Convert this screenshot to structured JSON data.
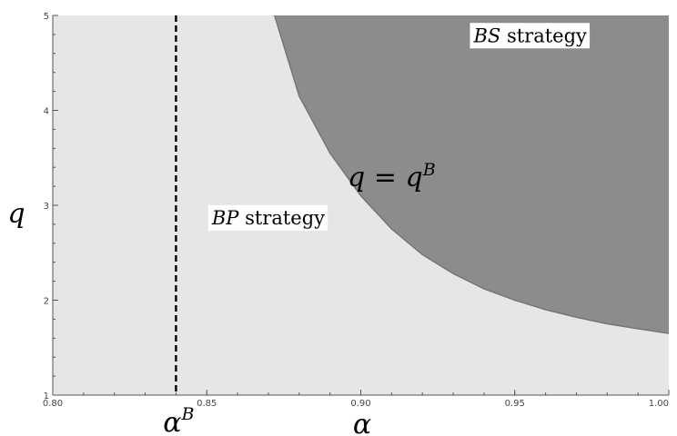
{
  "chart_data": {
    "type": "area",
    "x_range": [
      0.8,
      1.0
    ],
    "y_range": [
      1,
      5
    ],
    "x_ticks": [
      0.8,
      0.85,
      0.9,
      0.95,
      1.0
    ],
    "x_tick_labels": [
      "0.80",
      "0.85",
      "0.90",
      "0.95",
      "1.00"
    ],
    "y_ticks": [
      1,
      2,
      3,
      4,
      5
    ],
    "y_tick_labels": [
      "1",
      "2",
      "3",
      "4",
      "5"
    ],
    "x_minor_step": 0.01,
    "y_minor_step": 0.2,
    "boundary_curve": {
      "x": [
        0.872,
        0.88,
        0.89,
        0.9,
        0.91,
        0.92,
        0.93,
        0.94,
        0.95,
        0.96,
        0.97,
        0.98,
        0.99,
        1.0
      ],
      "y": [
        5.0,
        4.15,
        3.55,
        3.1,
        2.75,
        2.48,
        2.28,
        2.12,
        2.0,
        1.9,
        1.82,
        1.75,
        1.7,
        1.65
      ]
    },
    "vertical_line_x": 0.84,
    "colors": {
      "bp_region": "#e6e6e6",
      "bs_region": "#8c8c8c",
      "boundary": "#737373",
      "dashed_line": "#000000"
    },
    "labels": {
      "bs_region": {
        "math": "BS",
        "text": " strategy",
        "x": 0.955,
        "y": 4.72
      },
      "bp_region": {
        "math": "BP",
        "text": " strategy",
        "x": 0.87,
        "y": 2.8
      },
      "curve": {
        "lhs": "q",
        "eq": " = ",
        "rhs": "q",
        "sup": "B",
        "x": 0.91,
        "y": 3.2
      },
      "xlabel": "α",
      "ylabel": "q",
      "vline_label": {
        "base": "α",
        "sup": "B"
      }
    }
  }
}
